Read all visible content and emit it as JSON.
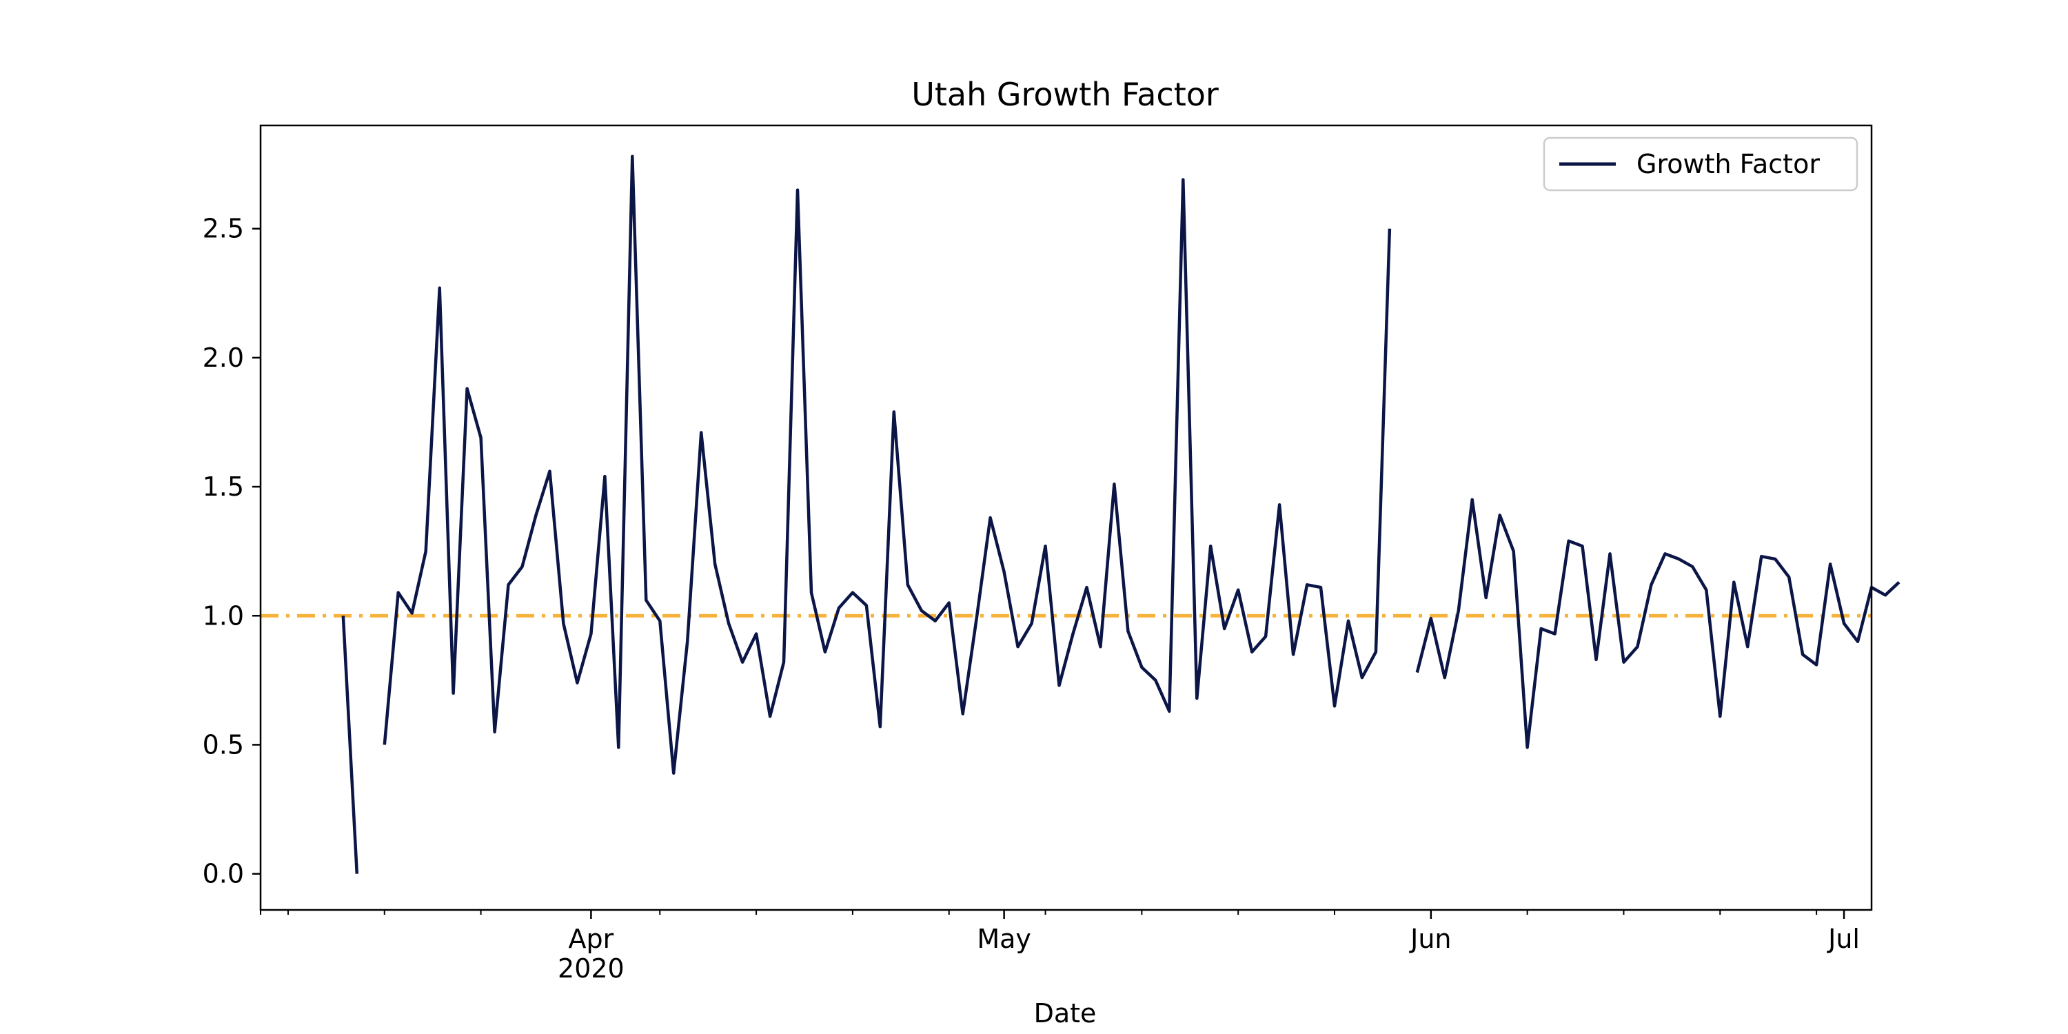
{
  "chart_data": {
    "type": "line",
    "title": "Utah Growth Factor",
    "xlabel": "Date",
    "ylabel": "",
    "xlim": [
      "2020-03-08",
      "2020-07-03"
    ],
    "ylim": [
      -0.14,
      2.9
    ],
    "yticks": [
      0.0,
      0.5,
      1.0,
      1.5,
      2.0,
      2.5
    ],
    "ytick_labels": [
      "0.0",
      "0.5",
      "1.0",
      "1.5",
      "2.0",
      "2.5"
    ],
    "xticks_major": [
      {
        "date": "2020-04-01",
        "label": "Apr",
        "sublabel": "2020"
      },
      {
        "date": "2020-05-01",
        "label": "May",
        "sublabel": ""
      },
      {
        "date": "2020-06-01",
        "label": "Jun",
        "sublabel": ""
      },
      {
        "date": "2020-07-01",
        "label": "Jul",
        "sublabel": ""
      }
    ],
    "xticks_minor": [
      "2020-03-08",
      "2020-03-10",
      "2020-03-17",
      "2020-03-24",
      "2020-04-06",
      "2020-04-13",
      "2020-04-20",
      "2020-04-27",
      "2020-05-04",
      "2020-05-11",
      "2020-05-18",
      "2020-05-25",
      "2020-06-08",
      "2020-06-15",
      "2020-06-22",
      "2020-06-29"
    ],
    "grid": false,
    "legend": {
      "position": "top-right"
    },
    "reference_line": {
      "y": 1.0,
      "color": "#f7b23b",
      "style": "dash-dot"
    },
    "series": [
      {
        "name": "Growth Factor",
        "color": "#0b1647",
        "start_date": "2020-03-14",
        "values": [
          1.0,
          0.0,
          null,
          0.5,
          1.09,
          1.01,
          1.25,
          2.27,
          0.7,
          1.88,
          1.69,
          0.55,
          1.12,
          1.19,
          1.39,
          1.56,
          0.97,
          0.74,
          0.93,
          1.54,
          0.49,
          2.78,
          1.06,
          0.98,
          0.39,
          0.9,
          1.71,
          1.2,
          0.97,
          0.82,
          0.93,
          0.61,
          0.82,
          2.65,
          1.09,
          0.86,
          1.03,
          1.09,
          1.04,
          0.57,
          1.79,
          1.12,
          1.02,
          0.98,
          1.05,
          0.62,
          0.99,
          1.38,
          1.17,
          0.88,
          0.97,
          1.27,
          0.73,
          0.93,
          1.11,
          0.88,
          1.51,
          0.94,
          0.8,
          0.75,
          0.63,
          2.69,
          0.68,
          1.27,
          0.95,
          1.1,
          0.86,
          0.92,
          1.43,
          0.85,
          1.12,
          1.11,
          0.65,
          0.98,
          0.76,
          0.86,
          2.5,
          null,
          0.78,
          0.99,
          0.76,
          1.02,
          1.45,
          1.07,
          1.39,
          1.25,
          0.49,
          0.95,
          0.93,
          1.29,
          1.27,
          0.83,
          1.24,
          0.82,
          0.88,
          1.12,
          1.24,
          1.22,
          1.19,
          1.1,
          0.61,
          1.13,
          0.88,
          1.23,
          1.22,
          1.15,
          0.85,
          0.81,
          1.2,
          0.97,
          0.9,
          1.11,
          1.08,
          1.13
        ]
      }
    ]
  }
}
